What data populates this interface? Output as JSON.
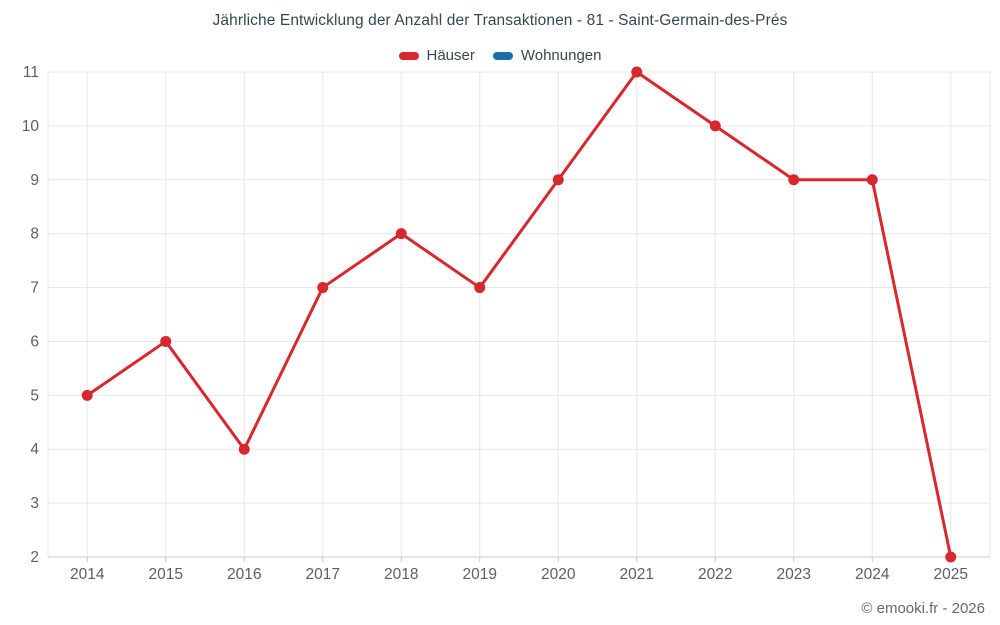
{
  "chart": {
    "title": "Jährliche Entwicklung der Anzahl der Transaktionen - 81 - Saint-Germain-des-Prés",
    "credit": "© emooki.fr - 2026"
  },
  "chart_data": {
    "type": "line",
    "title": "Jährliche Entwicklung der Anzahl der Transaktionen - 81 - Saint-Germain-des-Prés",
    "categories": [
      "2014",
      "2015",
      "2016",
      "2017",
      "2018",
      "2019",
      "2020",
      "2021",
      "2022",
      "2023",
      "2024",
      "2025"
    ],
    "series": [
      {
        "name": "Häuser",
        "color": "#d7282e",
        "values": [
          5,
          6,
          4,
          7,
          8,
          7,
          9,
          11,
          10,
          9,
          9,
          2
        ]
      },
      {
        "name": "Wohnungen",
        "color": "#1a6fa8",
        "values": []
      }
    ],
    "xlabel": "",
    "ylabel": "",
    "ylim": [
      2,
      11
    ],
    "yticks": [
      2,
      3,
      4,
      5,
      6,
      7,
      8,
      9,
      10,
      11
    ],
    "grid": true,
    "legend_position": "top",
    "marker": "circle"
  }
}
